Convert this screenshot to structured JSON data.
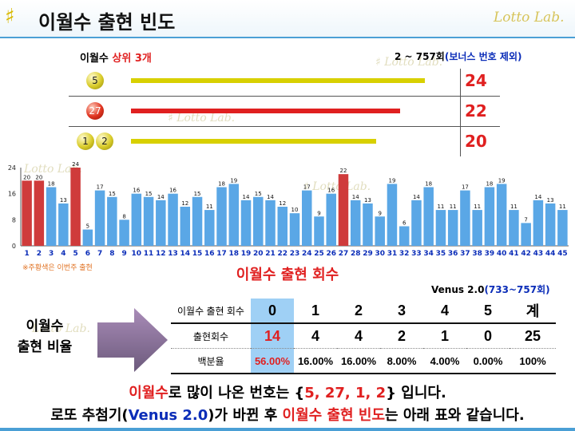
{
  "header": {
    "logo_glyph": "♯",
    "title": "이월수 출현 빈도",
    "brand": "Lotto Lab."
  },
  "top3": {
    "label_prefix": "이월수 ",
    "label_highlight": "상위 3개",
    "range_prefix": "2 ~ 757회",
    "range_note": "(보너스 번호 제외)",
    "rows": [
      {
        "balls": [
          {
            "num": "5",
            "color": "yellow"
          }
        ],
        "value": "24",
        "bar_fraction": 1.0,
        "bar_color": "#d8d000"
      },
      {
        "balls": [
          {
            "num": "27",
            "color": "red"
          }
        ],
        "value": "22",
        "bar_fraction": 0.9167,
        "bar_color": "#e02020"
      },
      {
        "balls": [
          {
            "num": "1",
            "color": "yellow"
          },
          {
            "num": "2",
            "color": "yellow"
          }
        ],
        "value": "20",
        "bar_fraction": 0.8333,
        "bar_color": "#d8d000"
      }
    ]
  },
  "chart_data": {
    "type": "bar",
    "categories": [
      "1",
      "2",
      "3",
      "4",
      "5",
      "6",
      "7",
      "8",
      "9",
      "10",
      "11",
      "12",
      "13",
      "14",
      "15",
      "16",
      "17",
      "18",
      "19",
      "20",
      "21",
      "22",
      "23",
      "24",
      "25",
      "26",
      "27",
      "28",
      "29",
      "30",
      "31",
      "32",
      "33",
      "34",
      "35",
      "36",
      "37",
      "38",
      "39",
      "40",
      "41",
      "42",
      "43",
      "44",
      "45"
    ],
    "values": [
      20,
      20,
      18,
      13,
      24,
      5,
      17,
      15,
      8,
      16,
      15,
      14,
      16,
      12,
      15,
      11,
      18,
      19,
      14,
      15,
      14,
      12,
      10,
      17,
      9,
      16,
      22,
      14,
      13,
      9,
      19,
      6,
      14,
      18,
      11,
      11,
      17,
      11,
      18,
      19,
      11,
      7,
      14,
      13,
      11
    ],
    "highlight_categories": [
      "1",
      "2",
      "5",
      "27"
    ],
    "highlight_color": "#cf3b3b",
    "bar_color": "#5aa7e6",
    "yticks": [
      "0",
      "8",
      "16",
      "24"
    ],
    "ylim": [
      0,
      24
    ],
    "title": "이월수 출현 회수",
    "note": "※주황색은 이번주 출현"
  },
  "ratio": {
    "label": [
      "이월수",
      "출현 비율"
    ],
    "venus_prefix": "Venus 2.0",
    "venus_note": "(733~757회)",
    "header_row": {
      "head": "이월수 출현 회수",
      "cells": [
        "0",
        "1",
        "2",
        "3",
        "4",
        "5",
        "계"
      ]
    },
    "count_row": {
      "head": "출현회수",
      "cells": [
        "14",
        "4",
        "4",
        "2",
        "1",
        "0",
        "25"
      ]
    },
    "percent_row": {
      "head": "백분율",
      "cells": [
        "56.00%",
        "16.00%",
        "16.00%",
        "8.00%",
        "4.00%",
        "0.00%",
        "100%"
      ]
    }
  },
  "footer": {
    "line1": [
      {
        "text": "이월수",
        "style": "red"
      },
      {
        "text": "로 많이 나온 번호는 {",
        "style": ""
      },
      {
        "text": "5, 27, 1, 2",
        "style": "red"
      },
      {
        "text": "} 입니다.",
        "style": ""
      }
    ],
    "line2": [
      {
        "text": "로또 추첨기(",
        "style": ""
      },
      {
        "text": "Venus 2.0",
        "style": "blue"
      },
      {
        "text": ")가 바뀐 후 ",
        "style": ""
      },
      {
        "text": "이월수 출현 빈도",
        "style": "red"
      },
      {
        "text": "는 아래 표와 같습니다.",
        "style": ""
      }
    ]
  }
}
